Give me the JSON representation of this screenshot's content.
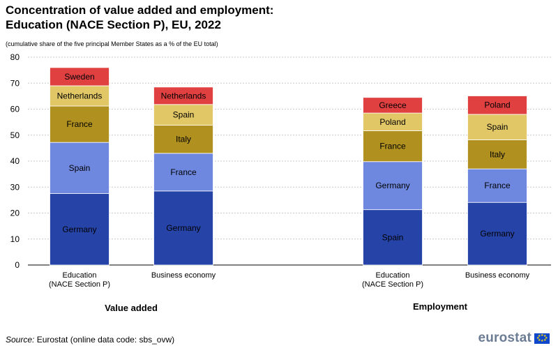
{
  "title_line1": "Concentration of value added and employment:",
  "title_line2": "Education (NACE Section P), EU, 2022",
  "subtitle": "(cumulative  share of the five  principal  Member States as a % of the EU total)",
  "group_labels": [
    "Value added",
    "Employment"
  ],
  "source_label": "Source:",
  "source_text": " Eurostat (online data code: sbs_ovw)",
  "logo_text": "eurostat",
  "chart_data": {
    "type": "bar",
    "stacked": true,
    "ylim": [
      0,
      80
    ],
    "yticks": [
      0,
      10,
      20,
      30,
      40,
      50,
      60,
      70,
      80
    ],
    "grid": true,
    "bars": [
      {
        "group": "Value added",
        "category": [
          "Education",
          "(NACE Section P)"
        ],
        "segments": [
          {
            "label": "Germany",
            "value": 27.5,
            "color": "#2644a7"
          },
          {
            "label": "Spain",
            "value": 19.7,
            "color": "#6e88e0"
          },
          {
            "label": "France",
            "value": 14.0,
            "color": "#b09120"
          },
          {
            "label": "Netherlands",
            "value": 7.8,
            "color": "#e2c766"
          },
          {
            "label": "Sweden",
            "value": 7.0,
            "color": "#e04040"
          }
        ]
      },
      {
        "group": "Value added",
        "category": [
          "Business economy"
        ],
        "segments": [
          {
            "label": "Germany",
            "value": 28.5,
            "color": "#2644a7"
          },
          {
            "label": "France",
            "value": 14.5,
            "color": "#6e88e0"
          },
          {
            "label": "Italy",
            "value": 10.8,
            "color": "#b09120"
          },
          {
            "label": "Spain",
            "value": 8.0,
            "color": "#e2c766"
          },
          {
            "label": "Netherlands",
            "value": 6.7,
            "color": "#e04040"
          }
        ]
      },
      {
        "group": "Employment",
        "category": [
          "Education",
          "(NACE Section P)"
        ],
        "segments": [
          {
            "label": "Spain",
            "value": 21.3,
            "color": "#2644a7"
          },
          {
            "label": "Germany",
            "value": 18.5,
            "color": "#6e88e0"
          },
          {
            "label": "France",
            "value": 11.9,
            "color": "#b09120"
          },
          {
            "label": "Poland",
            "value": 6.8,
            "color": "#e2c766"
          },
          {
            "label": "Greece",
            "value": 6.0,
            "color": "#e04040"
          }
        ]
      },
      {
        "group": "Employment",
        "category": [
          "Business economy"
        ],
        "segments": [
          {
            "label": "Germany",
            "value": 24.1,
            "color": "#2644a7"
          },
          {
            "label": "France",
            "value": 12.9,
            "color": "#6e88e0"
          },
          {
            "label": "Italy",
            "value": 11.2,
            "color": "#b09120"
          },
          {
            "label": "Spain",
            "value": 9.8,
            "color": "#e2c766"
          },
          {
            "label": "Poland",
            "value": 7.1,
            "color": "#e04040"
          }
        ]
      }
    ]
  }
}
